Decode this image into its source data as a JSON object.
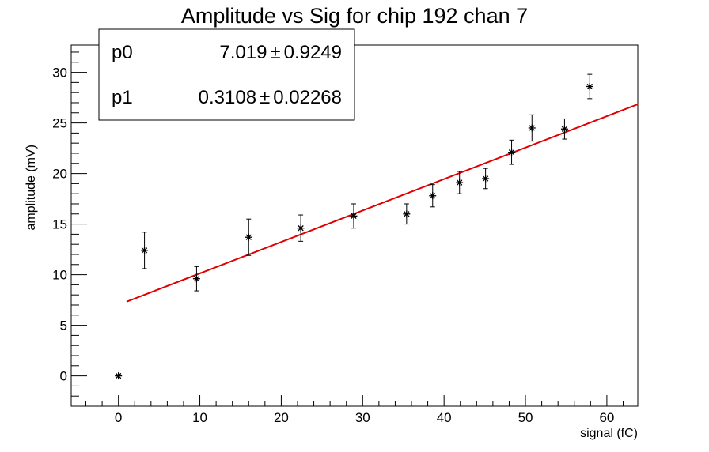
{
  "chart_data": {
    "type": "scatter",
    "title": "Amplitude vs Sig for chip 192 chan 7",
    "xlabel": "signal (fC)",
    "ylabel": "amplitude (mV)",
    "xlim": [
      -5.8,
      63.8
    ],
    "ylim": [
      -3,
      32.7
    ],
    "x_ticks": [
      0,
      10,
      20,
      30,
      40,
      50,
      60
    ],
    "y_ticks": [
      0,
      5,
      10,
      15,
      20,
      25,
      30
    ],
    "grid": false,
    "legend": "none",
    "points": [
      {
        "x": 0.0,
        "y": 0.0,
        "err": 0.0
      },
      {
        "x": 3.2,
        "y": 12.4,
        "err": 1.8
      },
      {
        "x": 9.6,
        "y": 9.6,
        "err": 1.2
      },
      {
        "x": 16.0,
        "y": 13.7,
        "err": 1.8
      },
      {
        "x": 22.4,
        "y": 14.6,
        "err": 1.3
      },
      {
        "x": 28.9,
        "y": 15.8,
        "err": 1.2
      },
      {
        "x": 35.4,
        "y": 16.0,
        "err": 1.0
      },
      {
        "x": 38.6,
        "y": 17.8,
        "err": 1.1
      },
      {
        "x": 41.9,
        "y": 19.1,
        "err": 1.1
      },
      {
        "x": 45.1,
        "y": 19.5,
        "err": 1.0
      },
      {
        "x": 48.3,
        "y": 22.1,
        "err": 1.2
      },
      {
        "x": 50.8,
        "y": 24.5,
        "err": 1.3
      },
      {
        "x": 54.8,
        "y": 24.4,
        "err": 1.0
      },
      {
        "x": 57.9,
        "y": 28.6,
        "err": 1.2
      }
    ],
    "fit": {
      "type": "linear",
      "x_range": [
        1.0,
        63.8
      ],
      "p0": 7.019,
      "p1": 0.3108,
      "color": "#e00000"
    },
    "stats": [
      {
        "name": "p0",
        "value": "7.019",
        "error": "0.9249"
      },
      {
        "name": "p1",
        "value": "0.3108",
        "error": "0.02268"
      }
    ],
    "pm_symbol": "±"
  }
}
